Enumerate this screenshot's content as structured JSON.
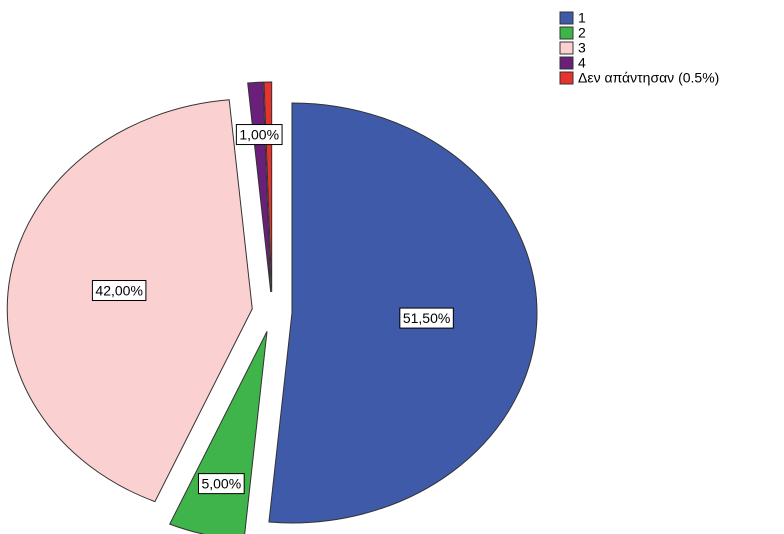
{
  "chart_data": {
    "type": "pie",
    "categories": [
      "1",
      "2",
      "3",
      "4",
      "Δεν απάντησαν (0.5%)"
    ],
    "values": [
      51.5,
      5,
      42,
      1,
      0.5
    ],
    "value_labels": [
      "51,50%",
      "5,00%",
      "42,00%",
      "1,00%",
      null
    ],
    "colors": [
      "#3f5aa8",
      "#3fb44a",
      "#fbd0d0",
      "#6a1f7a",
      "#e8322e"
    ],
    "legend": "top-right"
  }
}
